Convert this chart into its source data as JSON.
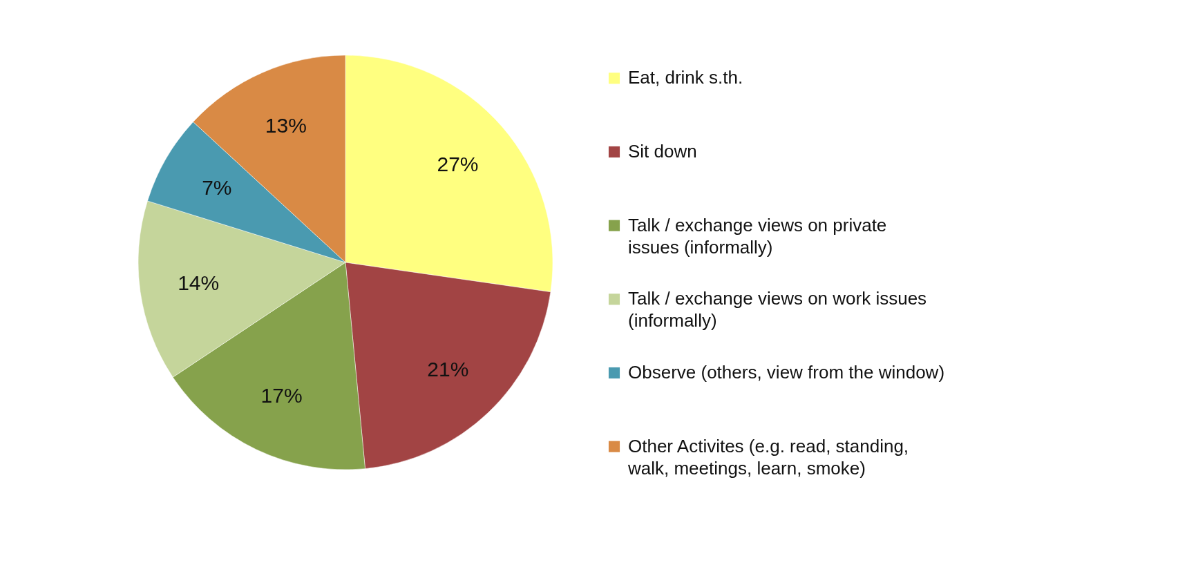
{
  "chart_data": {
    "type": "pie",
    "categories": [
      "Eat, drink s.th.",
      "Sit down",
      "Talk / exchange views on private issues (informally)",
      "Talk / exchange views on work issues (informally)",
      "Observe (others, view from the window)",
      "Other Activites (e.g. read, standing, walk, meetings, learn, smoke)"
    ],
    "values": [
      27,
      21,
      17,
      14,
      7,
      13
    ],
    "colors": [
      "#ffff80",
      "#a24444",
      "#86a24c",
      "#c5d59b",
      "#4a9ab0",
      "#d98a45"
    ],
    "value_labels": [
      "27%",
      "21%",
      "17%",
      "14%",
      "7%",
      "13%"
    ],
    "legend": "right"
  }
}
